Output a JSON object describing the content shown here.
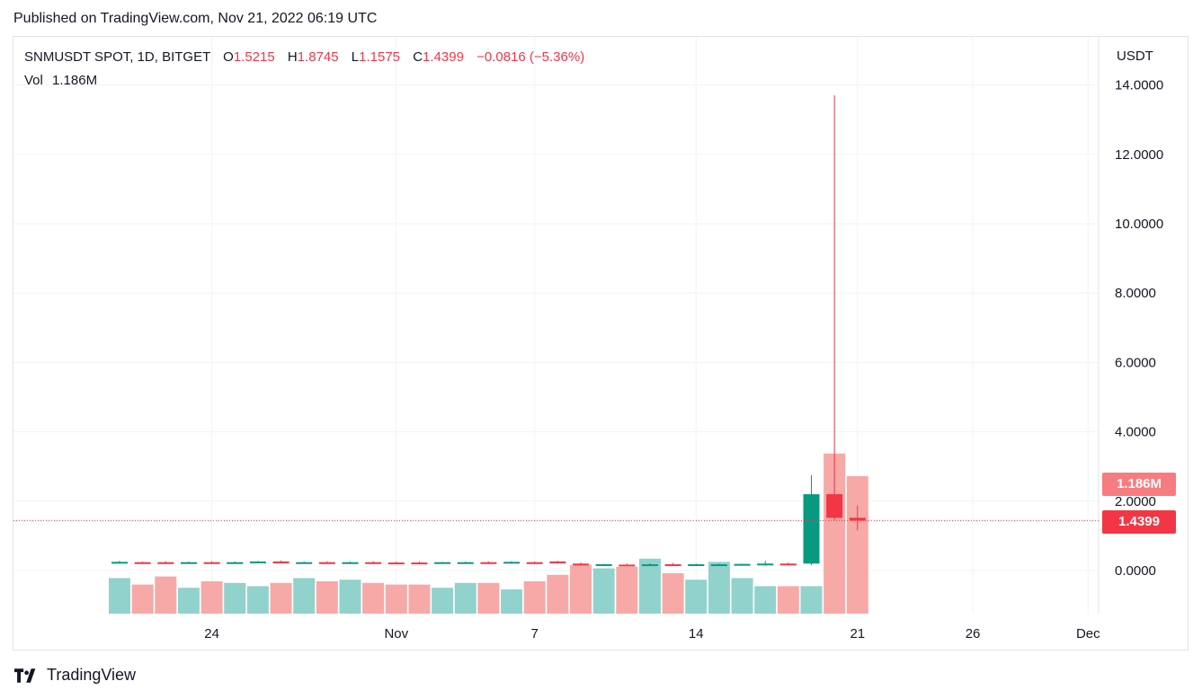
{
  "header": {
    "published": "Published on TradingView.com, Nov 21, 2022 06:19 UTC"
  },
  "legend": {
    "symbol": "SNMUSDT SPOT, 1D, BITGET",
    "o_label": "O",
    "o_value": "1.5215",
    "h_label": "H",
    "h_value": "1.8745",
    "l_label": "L",
    "l_value": "1.1575",
    "c_label": "C",
    "c_value": "1.4399",
    "change": "−0.0816 (−5.36%)",
    "vol_label": "Vol",
    "vol_value": "1.186M"
  },
  "badges": {
    "volume": "1.186M",
    "price": "1.4399"
  },
  "footer": {
    "brand": "TradingView"
  },
  "colors": {
    "up": "#089981",
    "down": "#f23645",
    "vol_up": "#92d2cc",
    "vol_down": "#f7a9a7",
    "grid": "#f0f3fa",
    "text": "#131722"
  },
  "chart_data": {
    "type": "candlestick",
    "currency": "USDT",
    "ylim": [
      -0.8,
      14.0
    ],
    "y_ticks": [
      "14.0000",
      "12.0000",
      "10.0000",
      "8.0000",
      "6.0000",
      "4.0000",
      "2.0000",
      "0.0000"
    ],
    "y_tick_values": [
      14,
      12,
      10,
      8,
      6,
      4,
      2,
      0
    ],
    "x_ticks": [
      {
        "label": "24",
        "index": 4
      },
      {
        "label": "Nov",
        "index": 12
      },
      {
        "label": "7",
        "index": 18
      },
      {
        "label": "14",
        "index": 25
      },
      {
        "label": "21",
        "index": 32
      },
      {
        "label": "26",
        "index": 37
      },
      {
        "label": "Dec",
        "index": 42
      }
    ],
    "last_price": 1.4399,
    "candles": [
      {
        "o": 0.22,
        "h": 0.28,
        "l": 0.2,
        "c": 0.25,
        "v": 0.22
      },
      {
        "o": 0.24,
        "h": 0.26,
        "l": 0.21,
        "c": 0.23,
        "v": 0.18
      },
      {
        "o": 0.24,
        "h": 0.27,
        "l": 0.21,
        "c": 0.23,
        "v": 0.23
      },
      {
        "o": 0.23,
        "h": 0.26,
        "l": 0.21,
        "c": 0.24,
        "v": 0.16
      },
      {
        "o": 0.24,
        "h": 0.27,
        "l": 0.21,
        "c": 0.23,
        "v": 0.2
      },
      {
        "o": 0.23,
        "h": 0.26,
        "l": 0.21,
        "c": 0.24,
        "v": 0.19
      },
      {
        "o": 0.24,
        "h": 0.28,
        "l": 0.22,
        "c": 0.26,
        "v": 0.17
      },
      {
        "o": 0.26,
        "h": 0.29,
        "l": 0.22,
        "c": 0.24,
        "v": 0.19
      },
      {
        "o": 0.23,
        "h": 0.26,
        "l": 0.21,
        "c": 0.24,
        "v": 0.22
      },
      {
        "o": 0.24,
        "h": 0.27,
        "l": 0.21,
        "c": 0.23,
        "v": 0.2
      },
      {
        "o": 0.23,
        "h": 0.26,
        "l": 0.21,
        "c": 0.24,
        "v": 0.21
      },
      {
        "o": 0.24,
        "h": 0.27,
        "l": 0.21,
        "c": 0.23,
        "v": 0.19
      },
      {
        "o": 0.23,
        "h": 0.26,
        "l": 0.21,
        "c": 0.22,
        "v": 0.18
      },
      {
        "o": 0.23,
        "h": 0.26,
        "l": 0.2,
        "c": 0.22,
        "v": 0.18
      },
      {
        "o": 0.22,
        "h": 0.25,
        "l": 0.2,
        "c": 0.24,
        "v": 0.16
      },
      {
        "o": 0.23,
        "h": 0.26,
        "l": 0.21,
        "c": 0.24,
        "v": 0.19
      },
      {
        "o": 0.24,
        "h": 0.26,
        "l": 0.21,
        "c": 0.22,
        "v": 0.19
      },
      {
        "o": 0.22,
        "h": 0.27,
        "l": 0.2,
        "c": 0.25,
        "v": 0.15
      },
      {
        "o": 0.24,
        "h": 0.26,
        "l": 0.21,
        "c": 0.23,
        "v": 0.2
      },
      {
        "o": 0.26,
        "h": 0.28,
        "l": 0.2,
        "c": 0.21,
        "v": 0.24
      },
      {
        "o": 0.2,
        "h": 0.23,
        "l": 0.16,
        "c": 0.17,
        "v": 0.3
      },
      {
        "o": 0.16,
        "h": 0.19,
        "l": 0.14,
        "c": 0.18,
        "v": 0.28
      },
      {
        "o": 0.17,
        "h": 0.2,
        "l": 0.14,
        "c": 0.16,
        "v": 0.29
      },
      {
        "o": 0.17,
        "h": 0.21,
        "l": 0.14,
        "c": 0.18,
        "v": 0.34
      },
      {
        "o": 0.18,
        "h": 0.22,
        "l": 0.15,
        "c": 0.17,
        "v": 0.25
      },
      {
        "o": 0.17,
        "h": 0.2,
        "l": 0.15,
        "c": 0.18,
        "v": 0.21
      },
      {
        "o": 0.17,
        "h": 0.2,
        "l": 0.15,
        "c": 0.18,
        "v": 0.32
      },
      {
        "o": 0.18,
        "h": 0.2,
        "l": 0.16,
        "c": 0.19,
        "v": 0.22
      },
      {
        "o": 0.18,
        "h": 0.28,
        "l": 0.14,
        "c": 0.2,
        "v": 0.17
      },
      {
        "o": 0.2,
        "h": 0.23,
        "l": 0.16,
        "c": 0.17,
        "v": 0.17
      },
      {
        "o": 0.2,
        "h": 2.75,
        "l": 0.15,
        "c": 2.2,
        "v": 0.17
      },
      {
        "o": 2.2,
        "h": 13.7,
        "l": 1.45,
        "c": 1.52,
        "v": 0.99
      },
      {
        "o": 1.5215,
        "h": 1.8745,
        "l": 1.1575,
        "c": 1.4399,
        "v": 0.85
      }
    ]
  }
}
